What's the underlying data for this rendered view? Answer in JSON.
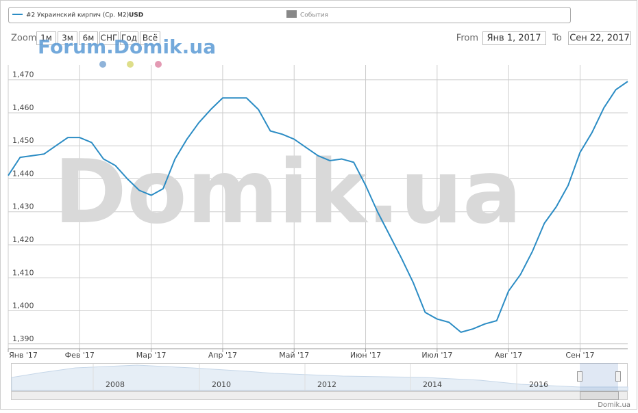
{
  "chart_data": {
    "type": "line",
    "categories": [
      "Янв '17",
      null,
      null,
      null,
      null,
      null,
      "Фев '17",
      null,
      null,
      null,
      null,
      null,
      "Мар '17",
      null,
      null,
      null,
      null,
      null,
      "Апр '17",
      null,
      null,
      null,
      null,
      null,
      "Май '17",
      null,
      null,
      null,
      null,
      null,
      "Июн '17",
      null,
      null,
      null,
      null,
      null,
      "Июл '17",
      null,
      null,
      null,
      null,
      null,
      "Авг '17",
      null,
      null,
      null,
      null,
      null,
      "Сен '17",
      null,
      null,
      null,
      null
    ],
    "series": [
      {
        "name": "#2 Украинский кирпич (Ср. М2)",
        "color": "#2b8cc4",
        "values": [
          1441,
          1446.5,
          1447,
          1447.5,
          1450,
          1452.5,
          1452.5,
          1451,
          1446,
          1444,
          1440,
          1436.5,
          1435,
          1437,
          1446,
          1452,
          1457,
          1461,
          1464.5,
          1464.5,
          1464.5,
          1461,
          1454.5,
          1453.5,
          1452,
          1449.5,
          1447,
          1445.5,
          1446,
          1445,
          1438,
          1430,
          1423,
          1416,
          1408.5,
          1399.5,
          1397.5,
          1396.5,
          1393.5,
          1394.5,
          1396,
          1397,
          1406,
          1411,
          1418,
          1426.5,
          1431.5,
          1438,
          1448,
          1454,
          1461.5,
          1467,
          1469.5
        ]
      }
    ],
    "unit": "USD",
    "ylim": [
      1388.5,
      1474.5
    ],
    "yticks": [
      {
        "value": 1390,
        "label": "1,390"
      },
      {
        "value": 1400,
        "label": "1,400"
      },
      {
        "value": 1410,
        "label": "1,410"
      },
      {
        "value": 1420,
        "label": "1,420"
      },
      {
        "value": 1430,
        "label": "1,430"
      },
      {
        "value": 1440,
        "label": "1,440"
      },
      {
        "value": 1450,
        "label": "1,450"
      },
      {
        "value": 1460,
        "label": "1,460"
      },
      {
        "value": 1470,
        "label": "1,470"
      }
    ],
    "grid": true
  },
  "legend": {
    "events": "События"
  },
  "toolbar": {
    "zoom": "Zoom",
    "buttons": [
      "1м",
      "3м",
      "6м",
      "СНГ",
      "Год",
      "Всё"
    ],
    "from_label": "From",
    "from": "Янв 1, 2017",
    "to_label": "To",
    "to": "Сен 22, 2017"
  },
  "watermarks": {
    "forum": "Forum.Domik.ua",
    "main": "Domik.ua"
  },
  "navigator": {
    "labels": [
      "2008",
      "2010",
      "2012",
      "2014",
      "2016"
    ]
  },
  "credit": "Domik.ua"
}
